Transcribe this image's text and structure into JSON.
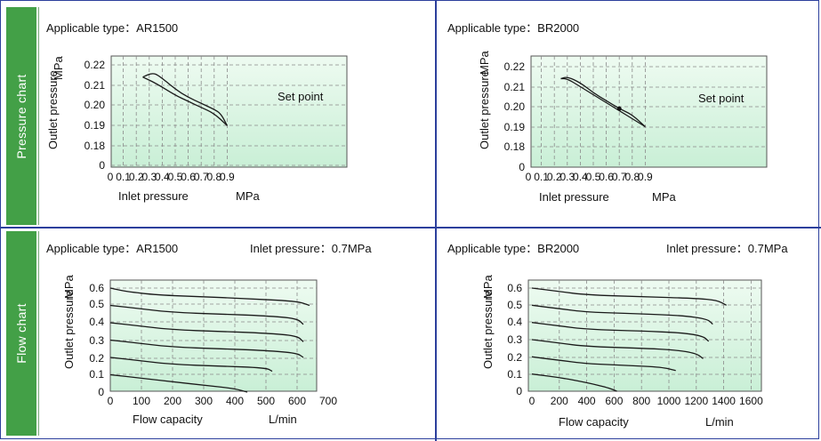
{
  "sidebar": {
    "pressure_label": "Pressure chart",
    "flow_label": "Flow chart"
  },
  "panels": {
    "p1": {
      "type_label": "Applicable type：AR1500"
    },
    "p2": {
      "type_label": "Applicable type：BR2000"
    },
    "p3": {
      "type_label": "Applicable type：AR1500",
      "inlet_label": "Inlet pressure：0.7MPa"
    },
    "p4": {
      "type_label": "Applicable type：BR2000",
      "inlet_label": "Inlet pressure：0.7MPa"
    }
  },
  "colors": {
    "border": "#2c3f9c",
    "sidebar": "#43a047",
    "plot_bg_top": "#eefbf1",
    "plot_bg_bottom": "#c9efd6",
    "grid": "#8a8a8a",
    "curve": "#1a1a1a"
  },
  "chart_data": [
    {
      "type": "line",
      "id": "pressure-ar1500",
      "xlabel": "Inlet pressure",
      "xunit": "MPa",
      "ylabel": "Outlet pressure",
      "yunit": "MPa",
      "xlim": [
        0,
        0.95
      ],
      "x_ticks": [
        "0",
        "0.1",
        "0.2",
        "0.3",
        "0.4",
        "0.5",
        "0.6",
        "0.7",
        "0.8",
        "0.9"
      ],
      "y_ticks": [
        "0.22",
        "0.21",
        "0.20",
        "0.19",
        "0.18",
        "0"
      ],
      "annotation": "Set point",
      "series": [
        {
          "x": [
            0.25,
            0.35,
            0.5,
            0.6,
            0.7,
            0.8,
            0.9
          ],
          "y": [
            0.214,
            0.211,
            0.205,
            0.202,
            0.199,
            0.196,
            0.19
          ]
        },
        {
          "x": [
            0.25,
            0.32,
            0.37,
            0.5,
            0.6,
            0.7,
            0.8,
            0.85,
            0.9
          ],
          "y": [
            0.214,
            0.216,
            0.215,
            0.208,
            0.204,
            0.201,
            0.198,
            0.196,
            0.19
          ]
        }
      ]
    },
    {
      "type": "line",
      "id": "pressure-br2000",
      "xlabel": "Inlet pressure",
      "xunit": "MPa",
      "ylabel": "Outlet pressure",
      "yunit": "MPa",
      "xlim": [
        0,
        0.95
      ],
      "x_ticks": [
        "0",
        "0.1",
        "0.2",
        "0.3",
        "0.4",
        "0.5",
        "0.6",
        "0.7",
        "0.8",
        "0.9"
      ],
      "y_ticks": [
        "0.22",
        "0.21",
        "0.20",
        "0.19",
        "0.18",
        "0"
      ],
      "annotation": "Set point",
      "set_point": {
        "x": 0.7,
        "y": 0.199
      },
      "series": [
        {
          "x": [
            0.25,
            0.3,
            0.4,
            0.5,
            0.6,
            0.7,
            0.8,
            0.9
          ],
          "y": [
            0.214,
            0.214,
            0.21,
            0.206,
            0.202,
            0.198,
            0.194,
            0.19
          ]
        },
        {
          "x": [
            0.25,
            0.3,
            0.4,
            0.5,
            0.6,
            0.7,
            0.8,
            0.9
          ],
          "y": [
            0.214,
            0.215,
            0.212,
            0.207,
            0.203,
            0.199,
            0.196,
            0.19
          ]
        }
      ]
    },
    {
      "type": "line",
      "id": "flow-ar1500",
      "xlabel": "Flow capacity",
      "xunit": "L/min",
      "ylabel": "Outlet pressure",
      "yunit": "MPa",
      "xlim": [
        0,
        780
      ],
      "ylim": [
        0,
        0.6
      ],
      "x_ticks": [
        "0",
        "100",
        "200",
        "300",
        "400",
        "500",
        "600",
        "700"
      ],
      "y_ticks": [
        "0.6",
        "0.5",
        "0.4",
        "0.3",
        "0.2",
        "0.1",
        "0"
      ],
      "series": [
        {
          "x": [
            0,
            50,
            150,
            300,
            420,
            600,
            640
          ],
          "y": [
            0.6,
            0.58,
            0.56,
            0.55,
            0.54,
            0.525,
            0.5
          ]
        },
        {
          "x": [
            0,
            100,
            200,
            350,
            500,
            600,
            620
          ],
          "y": [
            0.5,
            0.48,
            0.46,
            0.45,
            0.44,
            0.425,
            0.39
          ]
        },
        {
          "x": [
            0,
            100,
            200,
            350,
            500,
            600,
            620
          ],
          "y": [
            0.4,
            0.38,
            0.36,
            0.35,
            0.34,
            0.325,
            0.29
          ]
        },
        {
          "x": [
            0,
            100,
            200,
            350,
            500,
            600,
            620
          ],
          "y": [
            0.3,
            0.28,
            0.26,
            0.25,
            0.24,
            0.225,
            0.2
          ]
        },
        {
          "x": [
            0,
            100,
            200,
            350,
            500,
            520
          ],
          "y": [
            0.2,
            0.18,
            0.16,
            0.15,
            0.14,
            0.12
          ]
        },
        {
          "x": [
            0,
            100,
            200,
            300,
            400,
            440
          ],
          "y": [
            0.1,
            0.08,
            0.06,
            0.04,
            0.02,
            0.0
          ]
        }
      ]
    },
    {
      "type": "line",
      "id": "flow-br2000",
      "xlabel": "Flow capacity",
      "xunit": "L/min",
      "ylabel": "Outlet pressure",
      "yunit": "MPa",
      "xlim": [
        0,
        1700
      ],
      "ylim": [
        0,
        0.6
      ],
      "x_ticks": [
        "0",
        "200",
        "400",
        "600",
        "800",
        "1000",
        "1200",
        "1400",
        "1600"
      ],
      "y_ticks": [
        "0.6",
        "0.5",
        "0.4",
        "0.3",
        "0.2",
        "0.1",
        "0"
      ],
      "series": [
        {
          "x": [
            0,
            200,
            400,
            800,
            1200,
            1350,
            1420
          ],
          "y": [
            0.6,
            0.58,
            0.56,
            0.55,
            0.54,
            0.53,
            0.5
          ]
        },
        {
          "x": [
            0,
            200,
            400,
            800,
            1100,
            1280,
            1320
          ],
          "y": [
            0.5,
            0.48,
            0.46,
            0.45,
            0.44,
            0.42,
            0.39
          ]
        },
        {
          "x": [
            0,
            200,
            400,
            800,
            1100,
            1250,
            1290
          ],
          "y": [
            0.4,
            0.38,
            0.36,
            0.35,
            0.34,
            0.32,
            0.29
          ]
        },
        {
          "x": [
            0,
            200,
            400,
            800,
            1050,
            1200,
            1250
          ],
          "y": [
            0.3,
            0.28,
            0.26,
            0.25,
            0.24,
            0.22,
            0.19
          ]
        },
        {
          "x": [
            0,
            200,
            400,
            700,
            950,
            1050
          ],
          "y": [
            0.2,
            0.18,
            0.16,
            0.15,
            0.14,
            0.12
          ]
        },
        {
          "x": [
            0,
            200,
            400,
            560,
            620
          ],
          "y": [
            0.1,
            0.08,
            0.05,
            0.02,
            0.0
          ]
        }
      ]
    }
  ]
}
